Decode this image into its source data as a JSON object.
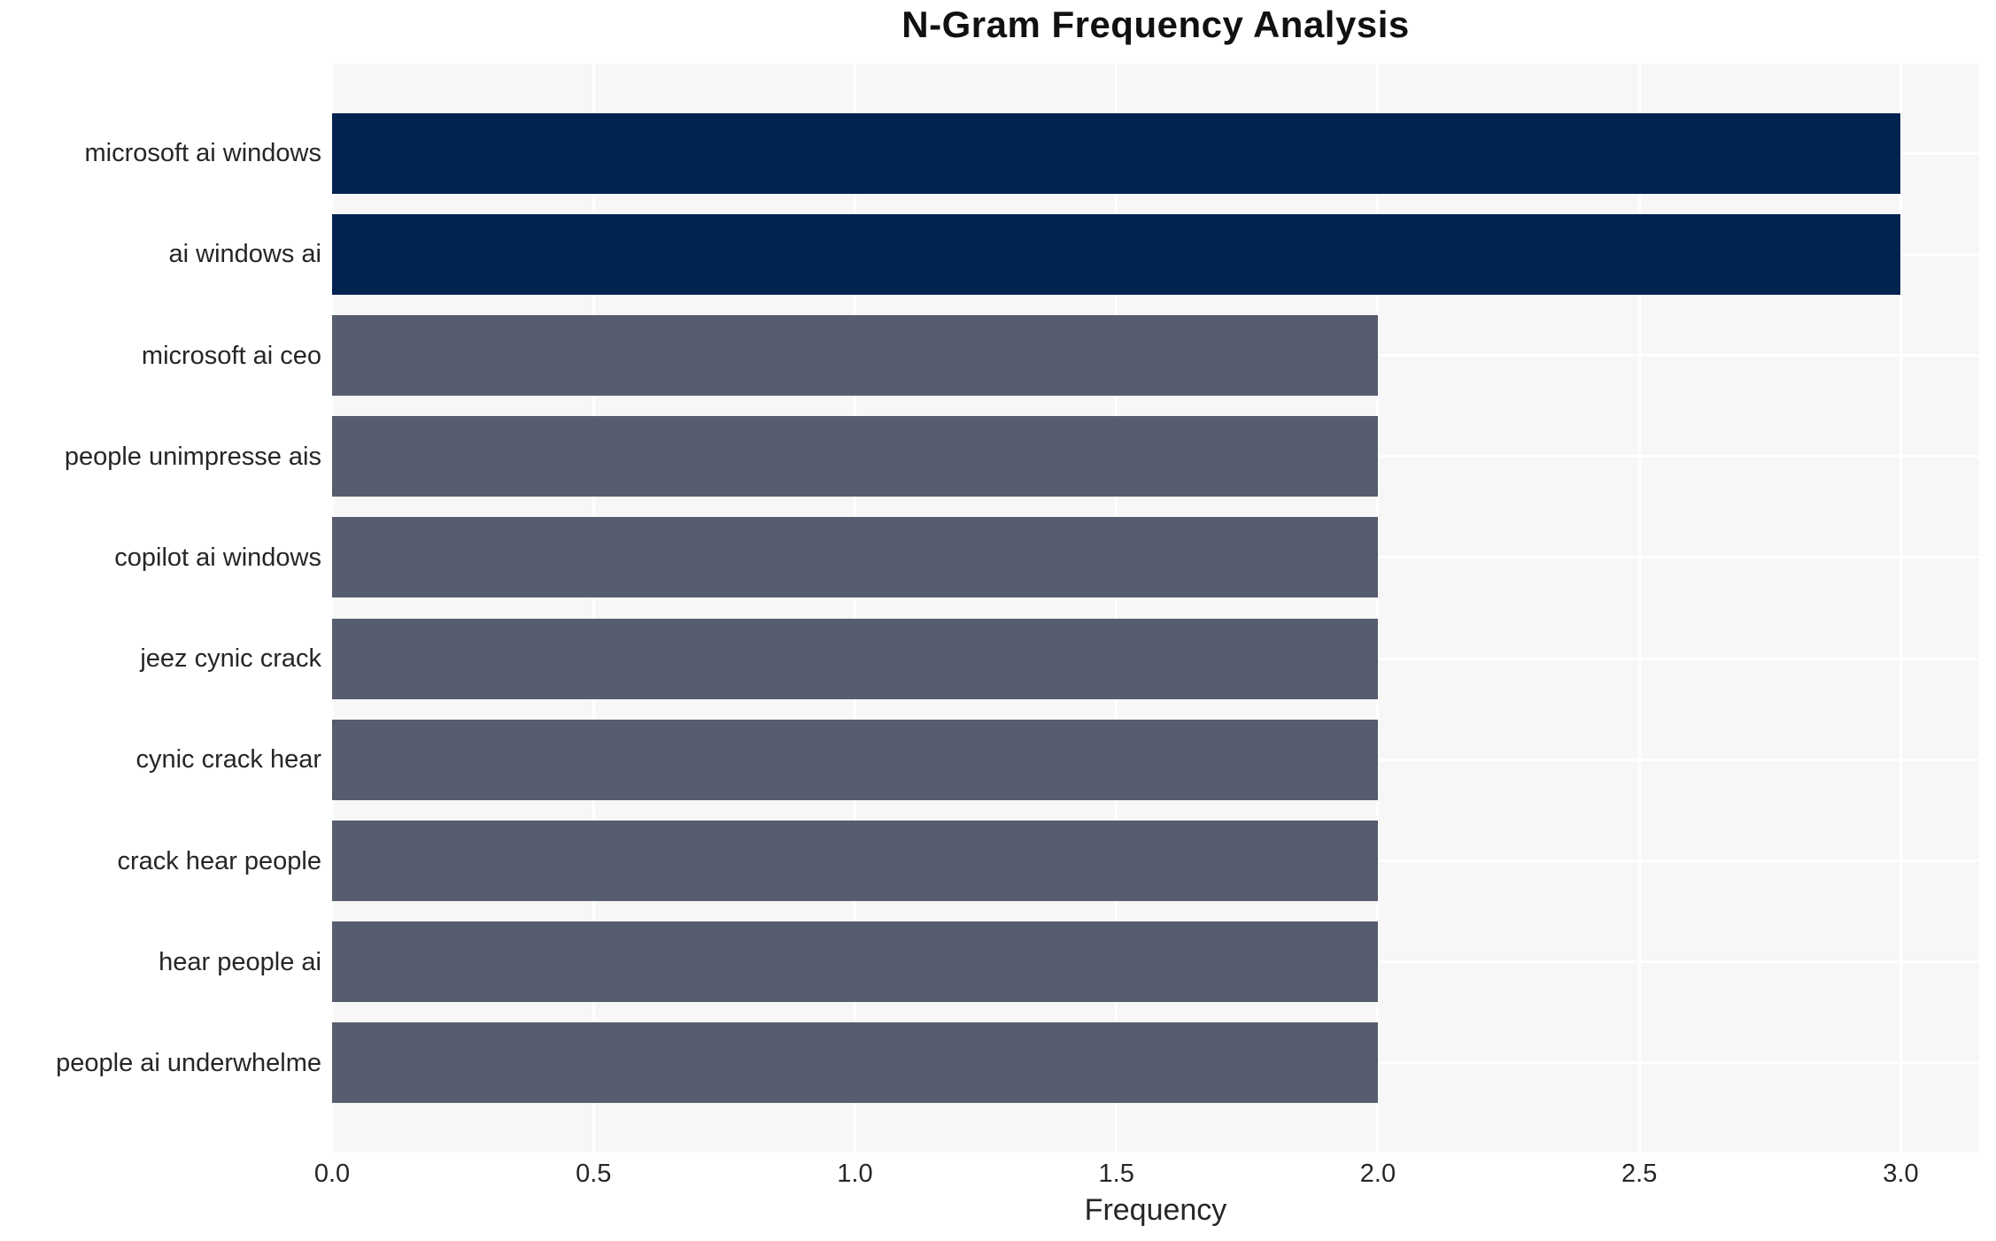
{
  "chart_data": {
    "type": "bar",
    "orientation": "horizontal",
    "title": "N-Gram Frequency Analysis",
    "xlabel": "Frequency",
    "ylabel": "",
    "categories": [
      "microsoft ai windows",
      "ai windows ai",
      "microsoft ai ceo",
      "people unimpresse ais",
      "copilot ai windows",
      "jeez cynic crack",
      "cynic crack hear",
      "crack hear people",
      "hear people ai",
      "people ai underwhelme"
    ],
    "values": [
      3.0,
      3.0,
      2.0,
      2.0,
      2.0,
      2.0,
      2.0,
      2.0,
      2.0,
      2.0
    ],
    "bar_colors": [
      "#012350",
      "#012350",
      "#565d6e",
      "#565d6e",
      "#565d6e",
      "#565d6e",
      "#565d6e",
      "#565d6e",
      "#565d6e",
      "#565d6e"
    ],
    "highlight_color": "#012350",
    "default_color": "#565d6e",
    "xticks": [
      0,
      0.5,
      1.0,
      1.5,
      2.0,
      2.5,
      3.0
    ],
    "xtick_labels": [
      "0.0",
      "0.5",
      "1.0",
      "1.5",
      "2.0",
      "2.5",
      "3.0"
    ],
    "xlim": [
      0,
      3.15
    ],
    "grid": true,
    "grid_color": "#ffffff",
    "plot_background": "#f7f7f8",
    "text_color": "#262626",
    "legend_position": "none"
  }
}
